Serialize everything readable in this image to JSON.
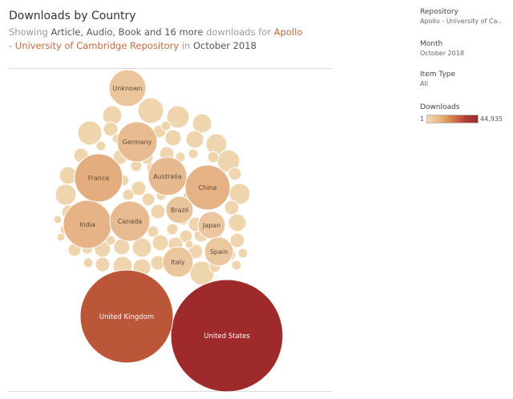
{
  "header": {
    "title": "Downloads by Country",
    "subtitle_prefix": "Showing",
    "subtitle_types": "Article, Audio, Book and 16 more",
    "subtitle_mid": "downloads for",
    "subtitle_repo": "Apollo - University of Cambridge Repository",
    "subtitle_in": "in",
    "subtitle_month": "October 2018"
  },
  "filters": {
    "repository": {
      "label": "Repository",
      "value": "Apollo - University of Ca.."
    },
    "month": {
      "label": "Month",
      "value": "October 2018"
    },
    "item_type": {
      "label": "Item Type",
      "value": "All"
    }
  },
  "legend": {
    "label": "Downloads",
    "min": "1",
    "max": "44,935"
  },
  "chart_data": {
    "type": "packed-bubble",
    "measure": "Downloads",
    "color_range": {
      "min": 1,
      "max": 44935,
      "low_color": "#f0d9b4",
      "high_color": "#9e2a2b"
    },
    "labeled_bubbles": [
      {
        "label": "United States",
        "downloads": 44935
      },
      {
        "label": "United Kingdom",
        "downloads": 33000
      },
      {
        "label": "France",
        "downloads": 8400
      },
      {
        "label": "China",
        "downloads": 7100
      },
      {
        "label": "India",
        "downloads": 6900
      },
      {
        "label": "Australia",
        "downloads": 5400
      },
      {
        "label": "Germany",
        "downloads": 5000
      },
      {
        "label": "Canada",
        "downloads": 5300
      },
      {
        "label": "Brazil",
        "downloads": 3100
      },
      {
        "label": "Japan",
        "downloads": 2700
      },
      {
        "label": "Italy",
        "downloads": 2900
      },
      {
        "label": "Spain",
        "downloads": 2500
      },
      {
        "label": "Unknown",
        "downloads": 2800
      }
    ]
  }
}
